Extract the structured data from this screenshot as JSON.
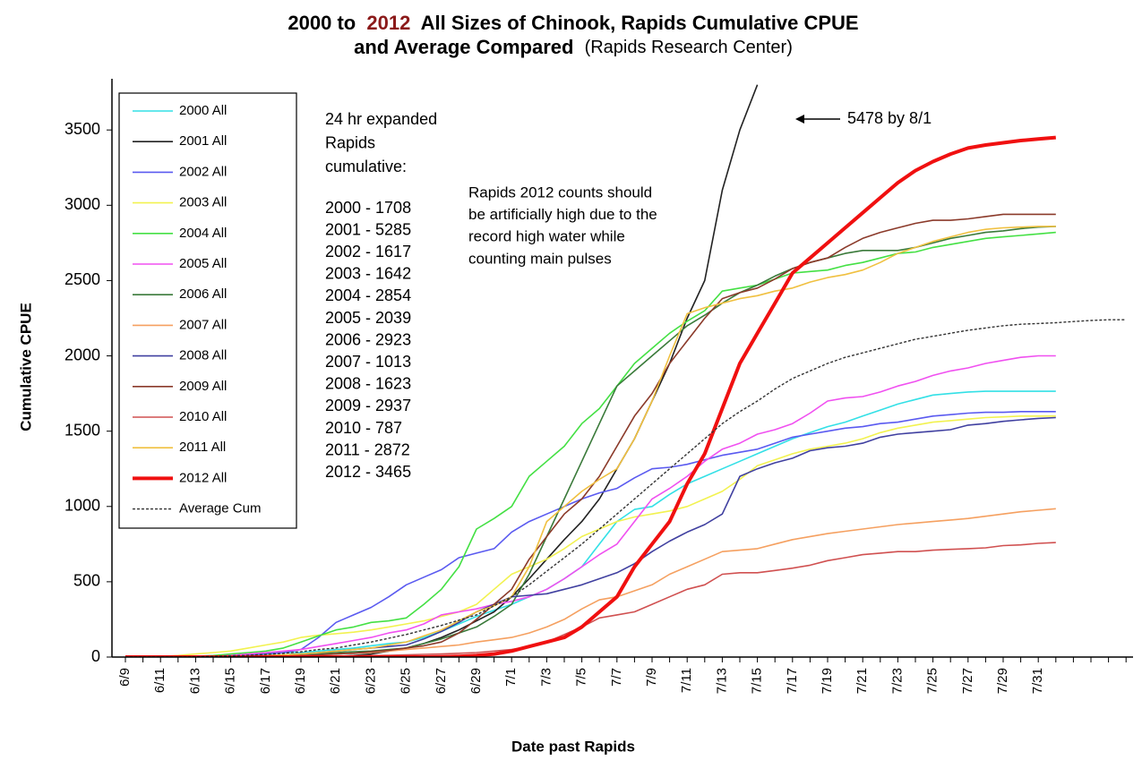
{
  "chart_data": {
    "type": "line",
    "title": [
      "2000 to",
      "2012",
      "All Sizes of Chinook, Rapids Cumulative CPUE"
    ],
    "subtitle": [
      "and Average Compared",
      "(Rapids Research Center)"
    ],
    "title_highlight_color": "#8b1a1a",
    "y_label": "Cumulative CPUE",
    "x_label": "Date past Rapids",
    "ylim": [
      0,
      3840
    ],
    "yticks": [
      0,
      500,
      1000,
      1500,
      2000,
      2500,
      3000,
      3500
    ],
    "legend": "upper left",
    "annotations": {
      "expanded_header": [
        "24 hr expanded",
        "Rapids",
        "cumulative:"
      ],
      "expanded_totals": [
        "2000 - 1708",
        "2001 - 5285",
        "2002 - 1617",
        "2003 - 1642",
        "2004 - 2854",
        "2005 - 2039",
        "2006 - 2923",
        "2007 - 1013",
        "2008 - 1623",
        "2009 - 2937",
        "2010 - 787",
        "2011 - 2872",
        "2012 - 3465"
      ],
      "note": [
        "Rapids 2012 counts should",
        "be artificially high due to the",
        "record high water while",
        "counting main pulses"
      ],
      "arrow_note": "5478 by 8/1"
    },
    "categories": [
      "6/9",
      null,
      "6/11",
      null,
      "6/13",
      null,
      "6/15",
      null,
      "6/17",
      null,
      "6/19",
      null,
      "6/21",
      null,
      "6/23",
      null,
      "6/25",
      null,
      "6/27",
      null,
      "6/29",
      null,
      "7/1",
      null,
      "7/3",
      null,
      "7/5",
      null,
      "7/7",
      null,
      "7/9",
      null,
      "7/11",
      null,
      "7/13",
      null,
      "7/15",
      null,
      "7/17",
      null,
      "7/19",
      null,
      "7/21",
      null,
      "7/23",
      null,
      "7/25",
      null,
      "7/27",
      null,
      "7/29",
      null,
      "7/31",
      null,
      null,
      null,
      null,
      null
    ],
    "series": [
      {
        "name": "2000 All",
        "color": "#33e0e6",
        "width": 1.6,
        "values": [
          0,
          0,
          0,
          2,
          5,
          8,
          10,
          15,
          20,
          30,
          30,
          40,
          50,
          60,
          75,
          90,
          100,
          130,
          170,
          220,
          270,
          310,
          350,
          400,
          450,
          520,
          600,
          750,
          900,
          980,
          1000,
          1080,
          1150,
          1200,
          1250,
          1300,
          1350,
          1400,
          1450,
          1490,
          1530,
          1560,
          1600,
          1640,
          1680,
          1710,
          1740,
          1750,
          1760,
          1765,
          1765,
          1765,
          1765,
          1765,
          null,
          null,
          null,
          null
        ]
      },
      {
        "name": "2001 All",
        "color": "#222222",
        "width": 1.6,
        "values": [
          0,
          0,
          0,
          0,
          0,
          0,
          0,
          0,
          0,
          0,
          0,
          0,
          5,
          10,
          20,
          40,
          60,
          90,
          130,
          180,
          240,
          300,
          400,
          520,
          650,
          780,
          900,
          1050,
          1250,
          1450,
          1700,
          1950,
          2250,
          2500,
          3100,
          3500,
          3800,
          null,
          null,
          null,
          null,
          null,
          null,
          null,
          null,
          null,
          null,
          null,
          null,
          null,
          null,
          null,
          null,
          null,
          null,
          null,
          null,
          null
        ]
      },
      {
        "name": "2002 All",
        "color": "#5a5af0",
        "width": 1.6,
        "values": [
          0,
          0,
          0,
          0,
          2,
          5,
          10,
          15,
          20,
          30,
          50,
          130,
          230,
          280,
          330,
          400,
          480,
          530,
          580,
          660,
          690,
          720,
          830,
          900,
          950,
          1000,
          1050,
          1090,
          1120,
          1190,
          1250,
          1260,
          1280,
          1310,
          1340,
          1360,
          1380,
          1420,
          1460,
          1480,
          1500,
          1520,
          1530,
          1550,
          1560,
          1580,
          1600,
          1610,
          1620,
          1625,
          1625,
          1630,
          1630,
          1630,
          null,
          null,
          null,
          null
        ]
      },
      {
        "name": "2003 All",
        "color": "#f2f250",
        "width": 1.6,
        "values": [
          0,
          2,
          5,
          10,
          20,
          30,
          40,
          60,
          80,
          100,
          130,
          145,
          155,
          165,
          180,
          200,
          220,
          240,
          270,
          300,
          350,
          450,
          550,
          600,
          650,
          720,
          800,
          850,
          900,
          930,
          950,
          970,
          1000,
          1050,
          1100,
          1180,
          1270,
          1310,
          1350,
          1380,
          1400,
          1420,
          1450,
          1490,
          1520,
          1540,
          1560,
          1570,
          1580,
          1590,
          1595,
          1600,
          1600,
          1600,
          null,
          null,
          null,
          null
        ]
      },
      {
        "name": "2004 All",
        "color": "#44e044",
        "width": 1.6,
        "values": [
          0,
          0,
          0,
          2,
          5,
          10,
          20,
          30,
          40,
          60,
          100,
          140,
          180,
          200,
          230,
          240,
          260,
          350,
          450,
          600,
          850,
          920,
          1000,
          1200,
          1300,
          1400,
          1550,
          1650,
          1800,
          1950,
          2050,
          2150,
          2230,
          2300,
          2430,
          2450,
          2470,
          2510,
          2550,
          2560,
          2570,
          2600,
          2620,
          2650,
          2680,
          2690,
          2720,
          2740,
          2760,
          2780,
          2790,
          2800,
          2810,
          2820,
          null,
          null,
          null,
          null
        ]
      },
      {
        "name": "2005 All",
        "color": "#f050f0",
        "width": 1.6,
        "values": [
          0,
          0,
          0,
          0,
          2,
          5,
          10,
          20,
          30,
          40,
          50,
          70,
          90,
          110,
          130,
          160,
          180,
          220,
          280,
          300,
          320,
          350,
          370,
          400,
          450,
          520,
          600,
          680,
          750,
          900,
          1050,
          1120,
          1200,
          1300,
          1380,
          1420,
          1480,
          1510,
          1550,
          1620,
          1700,
          1720,
          1730,
          1760,
          1800,
          1830,
          1870,
          1900,
          1920,
          1950,
          1970,
          1990,
          2000,
          2000,
          null,
          null,
          null,
          null
        ]
      },
      {
        "name": "2006 All",
        "color": "#3a7a3a",
        "width": 1.6,
        "values": [
          0,
          0,
          0,
          0,
          0,
          0,
          2,
          5,
          10,
          15,
          20,
          25,
          30,
          35,
          40,
          50,
          60,
          90,
          120,
          160,
          200,
          270,
          350,
          550,
          800,
          1050,
          1300,
          1550,
          1800,
          1900,
          2000,
          2100,
          2200,
          2270,
          2350,
          2420,
          2470,
          2530,
          2580,
          2620,
          2650,
          2680,
          2700,
          2700,
          2700,
          2720,
          2750,
          2780,
          2800,
          2820,
          2830,
          2845,
          2855,
          2860,
          null,
          null,
          null,
          null
        ]
      },
      {
        "name": "2007 All",
        "color": "#f5a060",
        "width": 1.6,
        "values": [
          0,
          0,
          0,
          0,
          0,
          0,
          0,
          2,
          5,
          8,
          10,
          15,
          20,
          25,
          30,
          40,
          50,
          60,
          70,
          80,
          100,
          115,
          130,
          160,
          200,
          250,
          320,
          380,
          400,
          440,
          480,
          550,
          600,
          650,
          700,
          710,
          720,
          750,
          780,
          800,
          820,
          835,
          850,
          865,
          880,
          890,
          900,
          910,
          920,
          935,
          950,
          965,
          975,
          985,
          null,
          null,
          null,
          null
        ]
      },
      {
        "name": "2008 All",
        "color": "#4040a0",
        "width": 1.6,
        "values": [
          0,
          0,
          0,
          0,
          0,
          2,
          5,
          8,
          10,
          15,
          20,
          30,
          40,
          50,
          60,
          70,
          80,
          120,
          170,
          230,
          300,
          350,
          400,
          410,
          420,
          450,
          480,
          520,
          560,
          620,
          700,
          770,
          830,
          880,
          950,
          1200,
          1250,
          1290,
          1320,
          1370,
          1390,
          1400,
          1420,
          1460,
          1480,
          1490,
          1500,
          1510,
          1540,
          1550,
          1565,
          1575,
          1585,
          1590,
          null,
          null,
          null,
          null
        ]
      },
      {
        "name": "2009 All",
        "color": "#8b3a2a",
        "width": 1.6,
        "values": [
          0,
          0,
          0,
          0,
          0,
          0,
          0,
          2,
          5,
          8,
          10,
          15,
          20,
          25,
          35,
          45,
          60,
          75,
          100,
          160,
          250,
          350,
          450,
          650,
          800,
          950,
          1050,
          1200,
          1400,
          1600,
          1750,
          1950,
          2100,
          2250,
          2380,
          2420,
          2450,
          2510,
          2580,
          2620,
          2650,
          2720,
          2780,
          2820,
          2850,
          2880,
          2900,
          2900,
          2910,
          2925,
          2940,
          2940,
          2940,
          2940,
          null,
          null,
          null,
          null
        ]
      },
      {
        "name": "2010 All",
        "color": "#d05050",
        "width": 1.6,
        "values": [
          0,
          0,
          0,
          0,
          0,
          0,
          0,
          0,
          0,
          0,
          0,
          2,
          5,
          8,
          10,
          12,
          15,
          18,
          20,
          25,
          30,
          40,
          50,
          70,
          100,
          150,
          200,
          260,
          280,
          300,
          350,
          400,
          450,
          480,
          550,
          560,
          560,
          575,
          590,
          610,
          640,
          660,
          680,
          690,
          700,
          700,
          710,
          715,
          720,
          725,
          740,
          745,
          755,
          760,
          null,
          null,
          null,
          null
        ]
      },
      {
        "name": "2011 All",
        "color": "#f0c040",
        "width": 1.6,
        "values": [
          0,
          0,
          0,
          0,
          0,
          0,
          2,
          5,
          10,
          15,
          20,
          30,
          40,
          50,
          60,
          80,
          100,
          140,
          180,
          240,
          300,
          340,
          400,
          600,
          900,
          1000,
          1100,
          1180,
          1250,
          1450,
          1700,
          2000,
          2280,
          2320,
          2350,
          2380,
          2400,
          2430,
          2450,
          2490,
          2520,
          2540,
          2570,
          2620,
          2680,
          2720,
          2760,
          2790,
          2820,
          2840,
          2850,
          2855,
          2860,
          2860,
          null,
          null,
          null,
          null
        ]
      },
      {
        "name": "2012 All",
        "color": "#f01010",
        "width": 4,
        "values": [
          0,
          0,
          0,
          0,
          0,
          0,
          0,
          0,
          0,
          0,
          0,
          0,
          0,
          0,
          0,
          0,
          0,
          0,
          2,
          5,
          10,
          20,
          40,
          70,
          100,
          130,
          200,
          300,
          400,
          600,
          750,
          900,
          1150,
          1350,
          1650,
          1950,
          2150,
          2350,
          2550,
          2650,
          2750,
          2850,
          2950,
          3050,
          3150,
          3230,
          3290,
          3340,
          3380,
          3400,
          3415,
          3430,
          3440,
          3450,
          null,
          null,
          null,
          null
        ]
      },
      {
        "name": "Average Cum",
        "color": "#333333",
        "width": 1.4,
        "dashed": true,
        "values": [
          0,
          0,
          0,
          0,
          2,
          5,
          8,
          12,
          18,
          25,
          35,
          50,
          60,
          80,
          100,
          125,
          150,
          180,
          210,
          245,
          280,
          340,
          400,
          480,
          570,
          660,
          750,
          850,
          950,
          1050,
          1150,
          1250,
          1350,
          1450,
          1550,
          1630,
          1700,
          1780,
          1850,
          1900,
          1950,
          1990,
          2020,
          2050,
          2080,
          2110,
          2130,
          2150,
          2170,
          2185,
          2200,
          2210,
          2215,
          2220,
          2228,
          2235,
          2240,
          2240
        ]
      }
    ]
  }
}
